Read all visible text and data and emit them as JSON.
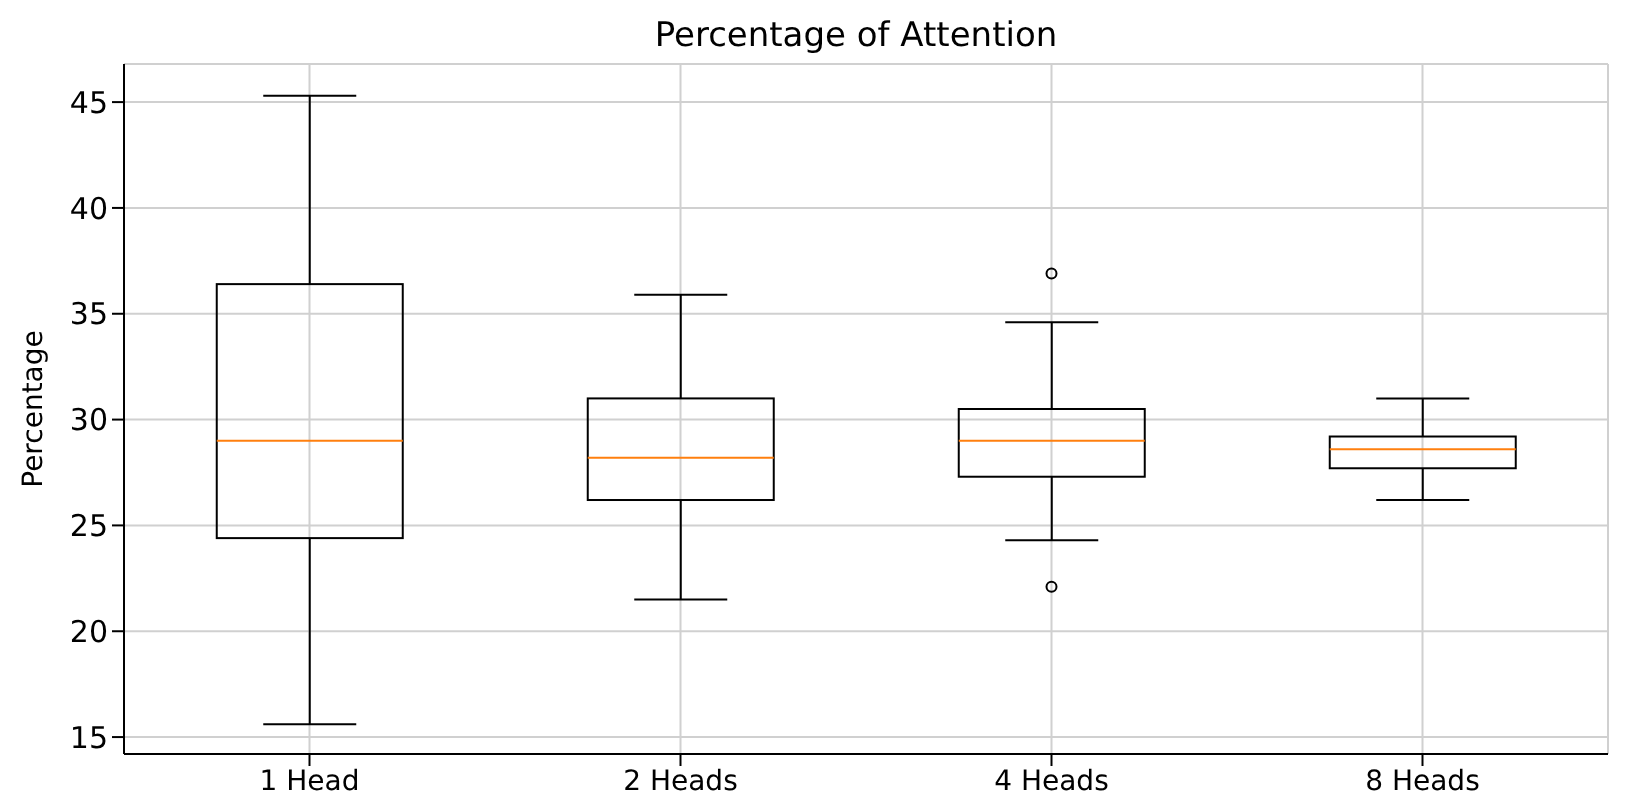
{
  "chart_data": {
    "type": "box",
    "title": "Percentage of Attention",
    "ylabel": "Percentage",
    "categories": [
      "1 Head",
      "2 Heads",
      "4 Heads",
      "8 Heads"
    ],
    "boxes": [
      {
        "low": 15.6,
        "q1": 24.4,
        "median": 29.0,
        "q3": 36.4,
        "high": 45.3
      },
      {
        "low": 21.5,
        "q1": 26.2,
        "median": 28.2,
        "q3": 31.0,
        "high": 35.9
      },
      {
        "low": 24.3,
        "q1": 27.3,
        "median": 29.0,
        "q3": 30.5,
        "high": 34.6,
        "outliers": [
          36.9,
          22.1
        ]
      },
      {
        "low": 26.2,
        "q1": 27.7,
        "median": 28.6,
        "q3": 29.2,
        "high": 31.0
      }
    ],
    "color": "#000000",
    "ylim": [
      14.2,
      46.8
    ],
    "yticks": [
      15,
      20,
      25,
      30,
      35,
      40,
      45
    ],
    "grid": true
  }
}
